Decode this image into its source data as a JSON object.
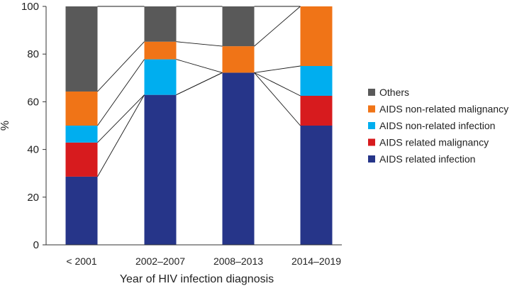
{
  "chart_data": {
    "type": "bar",
    "stacked": true,
    "percent": true,
    "title": "",
    "xlabel": "Year of HIV infection diagnosis",
    "ylabel": "%",
    "ylim": [
      0,
      100
    ],
    "yticks": [
      0,
      20,
      40,
      60,
      80,
      100
    ],
    "categories": [
      "< 2001",
      "2002–2007",
      "2008–2013",
      "2014–2019"
    ],
    "series": [
      {
        "name": "AIDS related infection",
        "color": "#263589",
        "values": [
          28.6,
          62.9,
          72.2,
          50.0
        ]
      },
      {
        "name": "AIDS related malignancy",
        "color": "#d71b1e",
        "values": [
          14.3,
          0,
          0,
          12.5
        ]
      },
      {
        "name": "AIDS non-related infection",
        "color": "#00aeef",
        "values": [
          7.1,
          14.9,
          0,
          12.5
        ]
      },
      {
        "name": "AIDS non-related malignancy",
        "color": "#f07417",
        "values": [
          14.3,
          7.4,
          11.1,
          25.0
        ]
      },
      {
        "name": "Others",
        "color": "#595959",
        "values": [
          35.7,
          14.8,
          16.7,
          0
        ]
      }
    ],
    "legend_order": [
      "Others",
      "AIDS non-related malignancy",
      "AIDS non-related infection",
      "AIDS related malignancy",
      "AIDS related infection"
    ],
    "legend_position": "right",
    "connector_lines": true,
    "grid": false
  }
}
